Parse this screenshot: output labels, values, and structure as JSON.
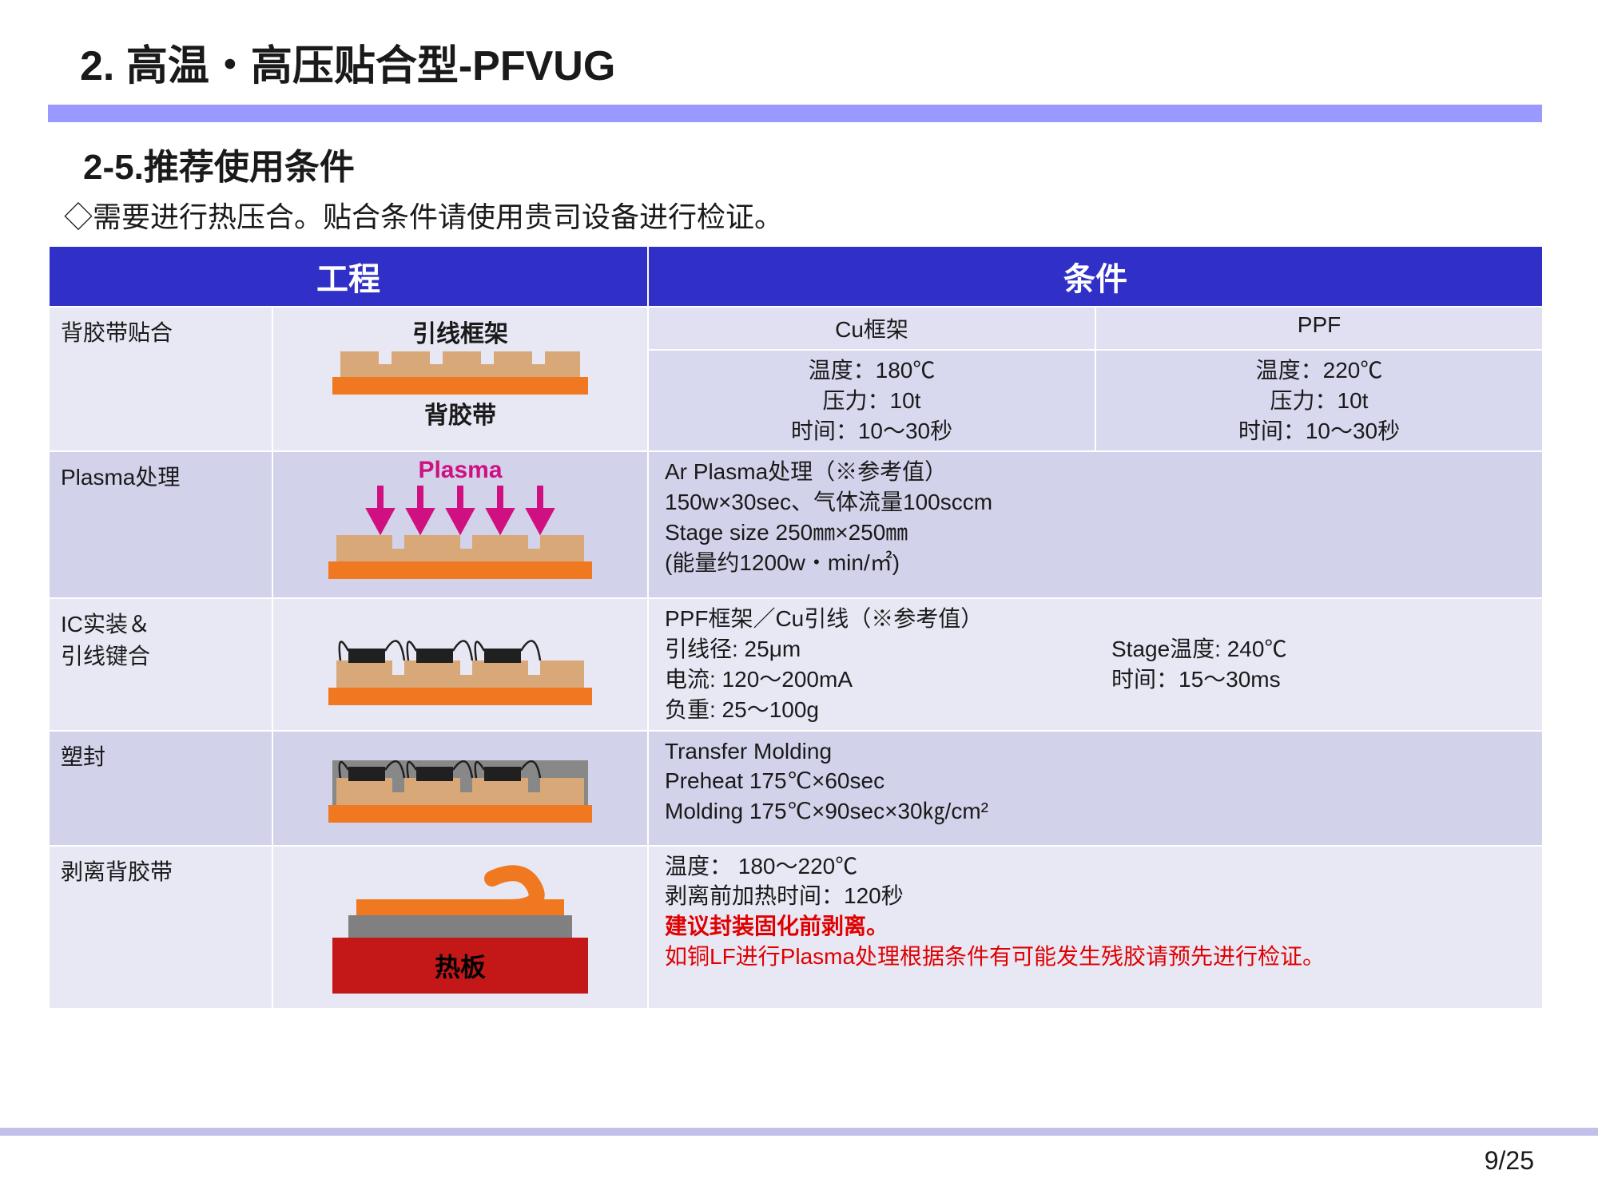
{
  "title": "2. 高温・高压贴合型-PFVUG",
  "subtitle": "2-5.推荐使用条件",
  "note": "◇需要进行热压合。贴合条件请使用贵司设备进行检证。",
  "table": {
    "headers": [
      "工程",
      "条件"
    ],
    "rows": [
      {
        "process": "背胶带贴合",
        "diagram": {
          "top_label": "引线框架",
          "bottom_label": "背胶带"
        },
        "cond_headers": [
          "Cu框架",
          "PPF"
        ],
        "cond_cells": [
          "温度：180℃\n压力：10t\n时间：10～30秒",
          "温度：220℃\n压力：10t\n时间：10～30秒"
        ]
      },
      {
        "process": "Plasma处理",
        "diagram": {
          "top_label": "Plasma"
        },
        "cond_text": "Ar Plasma处理（※参考值）\n150w×30sec、气体流量100sccm\nStage size 250㎜×250㎜\n(能量约1200w・min/㎡)"
      },
      {
        "process": "IC实装＆\n引线键合",
        "cond_left": "PPF框架／Cu引线（※参考值）\n引线径: 25μm\n电流: 120～200mA\n负重: 25～100g",
        "cond_right": "\nStage温度: 240℃\n时间：15～30ms"
      },
      {
        "process": "塑封",
        "cond_text": "Transfer Molding\nPreheat  175℃×60sec\nMolding  175℃×90sec×30㎏/cm²"
      },
      {
        "process": "剥离背胶带",
        "diagram": {
          "label": "热板"
        },
        "cond_lines": [
          {
            "t": "温度：  180～220℃",
            "c": "normal"
          },
          {
            "t": "剥离前加热时间：120秒",
            "c": "normal"
          },
          {
            "t": "建议封装固化前剥离。",
            "c": "red-bold"
          },
          {
            "t": "如铜LF进行Plasma处理根据条件有可能发生残胶请预先进行检证。",
            "c": "red"
          }
        ]
      }
    ]
  },
  "page": "9/25",
  "colors": {
    "orange": "#f07820",
    "tan": "#d8a878",
    "magenta": "#d01080",
    "black": "#202020",
    "gray": "#808080",
    "darkgray": "#888888",
    "red_plate": "#c41818"
  }
}
